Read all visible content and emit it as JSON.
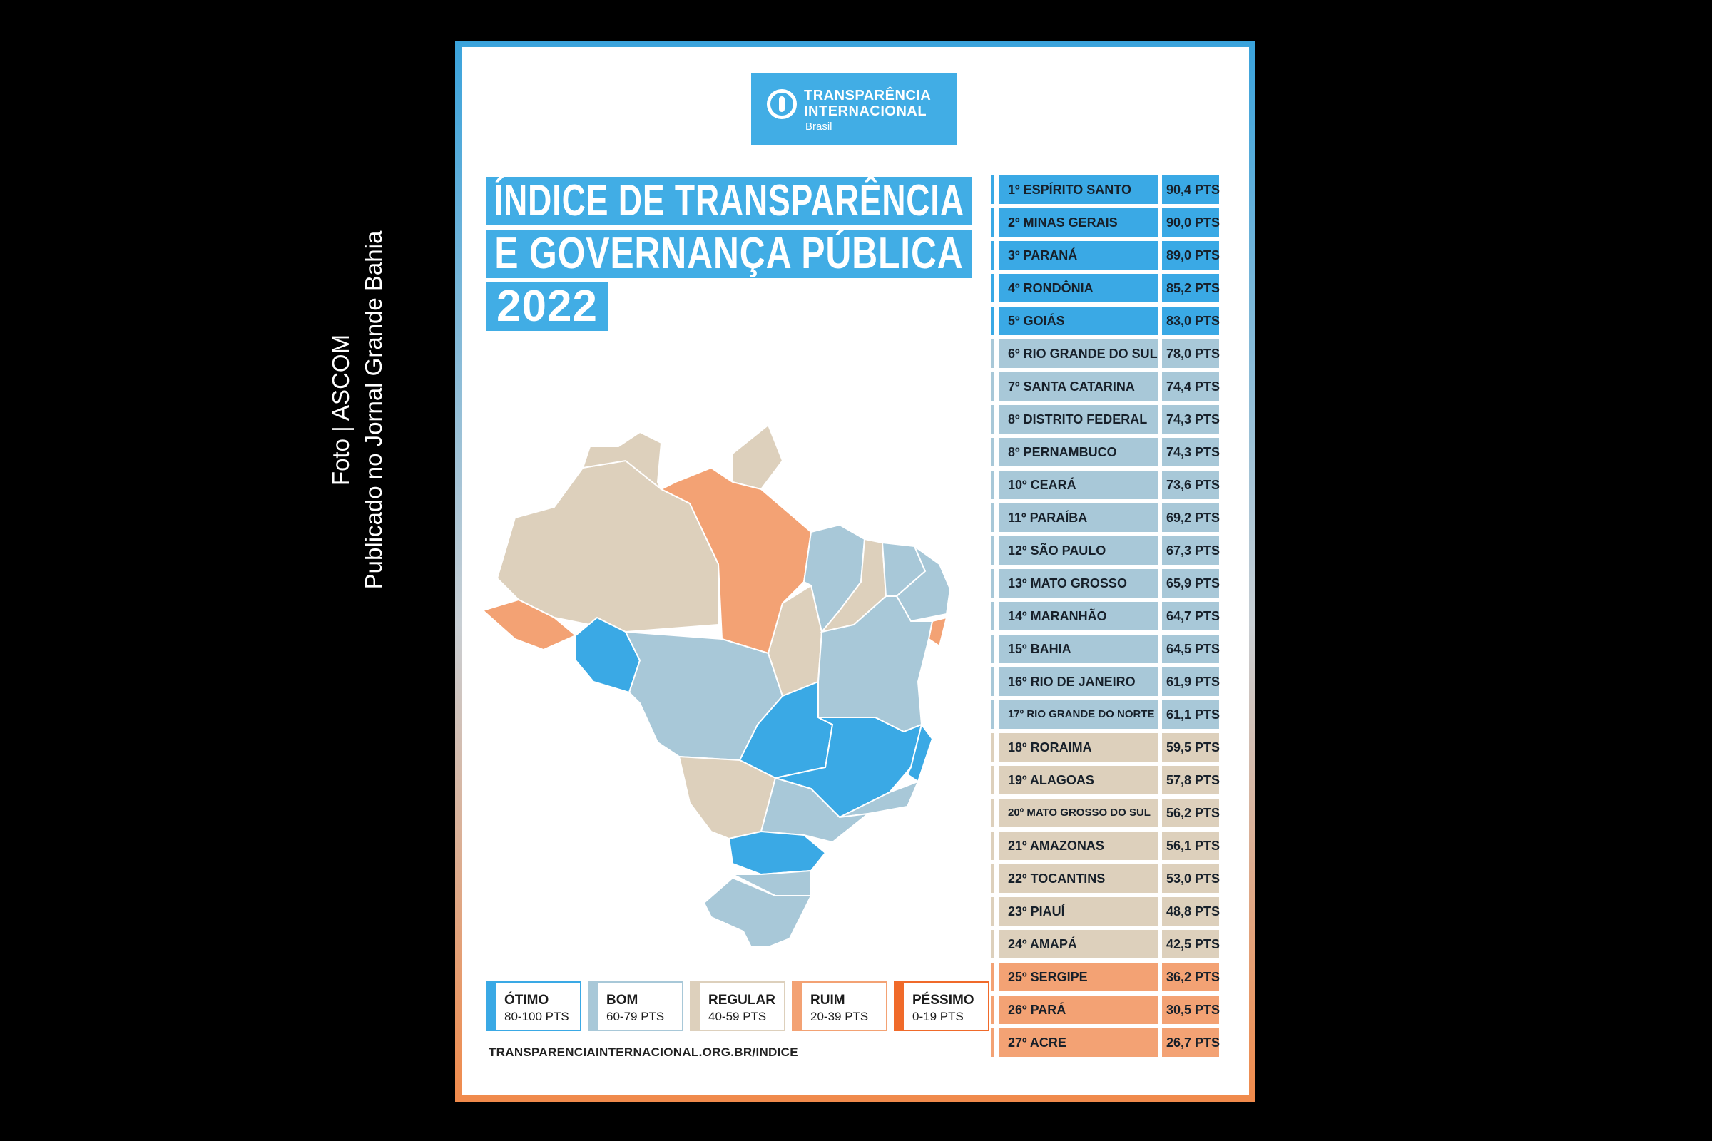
{
  "credit": {
    "line1": "Foto | ASCOM",
    "line2": "Publicado no Jornal Grande Bahia"
  },
  "logo": {
    "line1": "TRANSPARÊNCIA",
    "line2": "INTERNACIONAL",
    "line3": "Brasil"
  },
  "title": {
    "line1": "ÍNDICE DE TRANSPARÊNCIA",
    "line2": "E GOVERNANÇA PÚBLICA",
    "line3": "2022"
  },
  "colors": {
    "otimo": "#3aa9e5",
    "bom": "#a8c8d8",
    "regular": "#ddd0bc",
    "ruim": "#f3a274",
    "pessimo": "#f06a2a"
  },
  "legend": [
    {
      "name": "ÓTIMO",
      "range": "80-100 PTS",
      "category": "otimo"
    },
    {
      "name": "BOM",
      "range": "60-79 PTS",
      "category": "bom"
    },
    {
      "name": "REGULAR",
      "range": "40-59 PTS",
      "category": "regular"
    },
    {
      "name": "RUIM",
      "range": "20-39 PTS",
      "category": "ruim"
    },
    {
      "name": "PÉSSIMO",
      "range": "0-19 PTS",
      "category": "pessimo"
    }
  ],
  "url": "TRANSPARENCIAINTERNACIONAL.ORG.BR/INDICE",
  "ranking": [
    {
      "label": "1º ESPÍRITO SANTO",
      "points": "90,4 PTS",
      "category": "otimo"
    },
    {
      "label": "2º MINAS GERAIS",
      "points": "90,0 PTS",
      "category": "otimo"
    },
    {
      "label": "3º PARANÁ",
      "points": "89,0 PTS",
      "category": "otimo"
    },
    {
      "label": "4º RONDÔNIA",
      "points": "85,2 PTS",
      "category": "otimo"
    },
    {
      "label": "5º GOIÁS",
      "points": "83,0 PTS",
      "category": "otimo"
    },
    {
      "label": "6º RIO GRANDE DO SUL",
      "points": "78,0 PTS",
      "category": "bom"
    },
    {
      "label": "7º SANTA CATARINA",
      "points": "74,4 PTS",
      "category": "bom"
    },
    {
      "label": "8º DISTRITO FEDERAL",
      "points": "74,3 PTS",
      "category": "bom"
    },
    {
      "label": "8º PERNAMBUCO",
      "points": "74,3 PTS",
      "category": "bom"
    },
    {
      "label": "10º CEARÁ",
      "points": "73,6 PTS",
      "category": "bom"
    },
    {
      "label": "11º PARAÍBA",
      "points": "69,2 PTS",
      "category": "bom"
    },
    {
      "label": "12º SÃO PAULO",
      "points": "67,3 PTS",
      "category": "bom"
    },
    {
      "label": "13º MATO GROSSO",
      "points": "65,9 PTS",
      "category": "bom"
    },
    {
      "label": "14º MARANHÃO",
      "points": "64,7 PTS",
      "category": "bom"
    },
    {
      "label": "15º BAHIA",
      "points": "64,5 PTS",
      "category": "bom"
    },
    {
      "label": "16º RIO DE JANEIRO",
      "points": "61,9 PTS",
      "category": "bom"
    },
    {
      "label": "17º RIO GRANDE DO NORTE",
      "points": "61,1 PTS",
      "category": "bom"
    },
    {
      "label": "18º RORAIMA",
      "points": "59,5 PTS",
      "category": "regular"
    },
    {
      "label": "19º ALAGOAS",
      "points": "57,8 PTS",
      "category": "regular"
    },
    {
      "label": "20º MATO GROSSO DO SUL",
      "points": "56,2 PTS",
      "category": "regular"
    },
    {
      "label": "21º AMAZONAS",
      "points": "56,1 PTS",
      "category": "regular"
    },
    {
      "label": "22º TOCANTINS",
      "points": "53,0 PTS",
      "category": "regular"
    },
    {
      "label": "23º PIAUÍ",
      "points": "48,8 PTS",
      "category": "regular"
    },
    {
      "label": "24º AMAPÁ",
      "points": "42,5 PTS",
      "category": "regular"
    },
    {
      "label": "25º SERGIPE",
      "points": "36,2 PTS",
      "category": "ruim"
    },
    {
      "label": "26º PARÁ",
      "points": "30,5 PTS",
      "category": "ruim"
    },
    {
      "label": "27º ACRE",
      "points": "26,7 PTS",
      "category": "ruim"
    }
  ]
}
